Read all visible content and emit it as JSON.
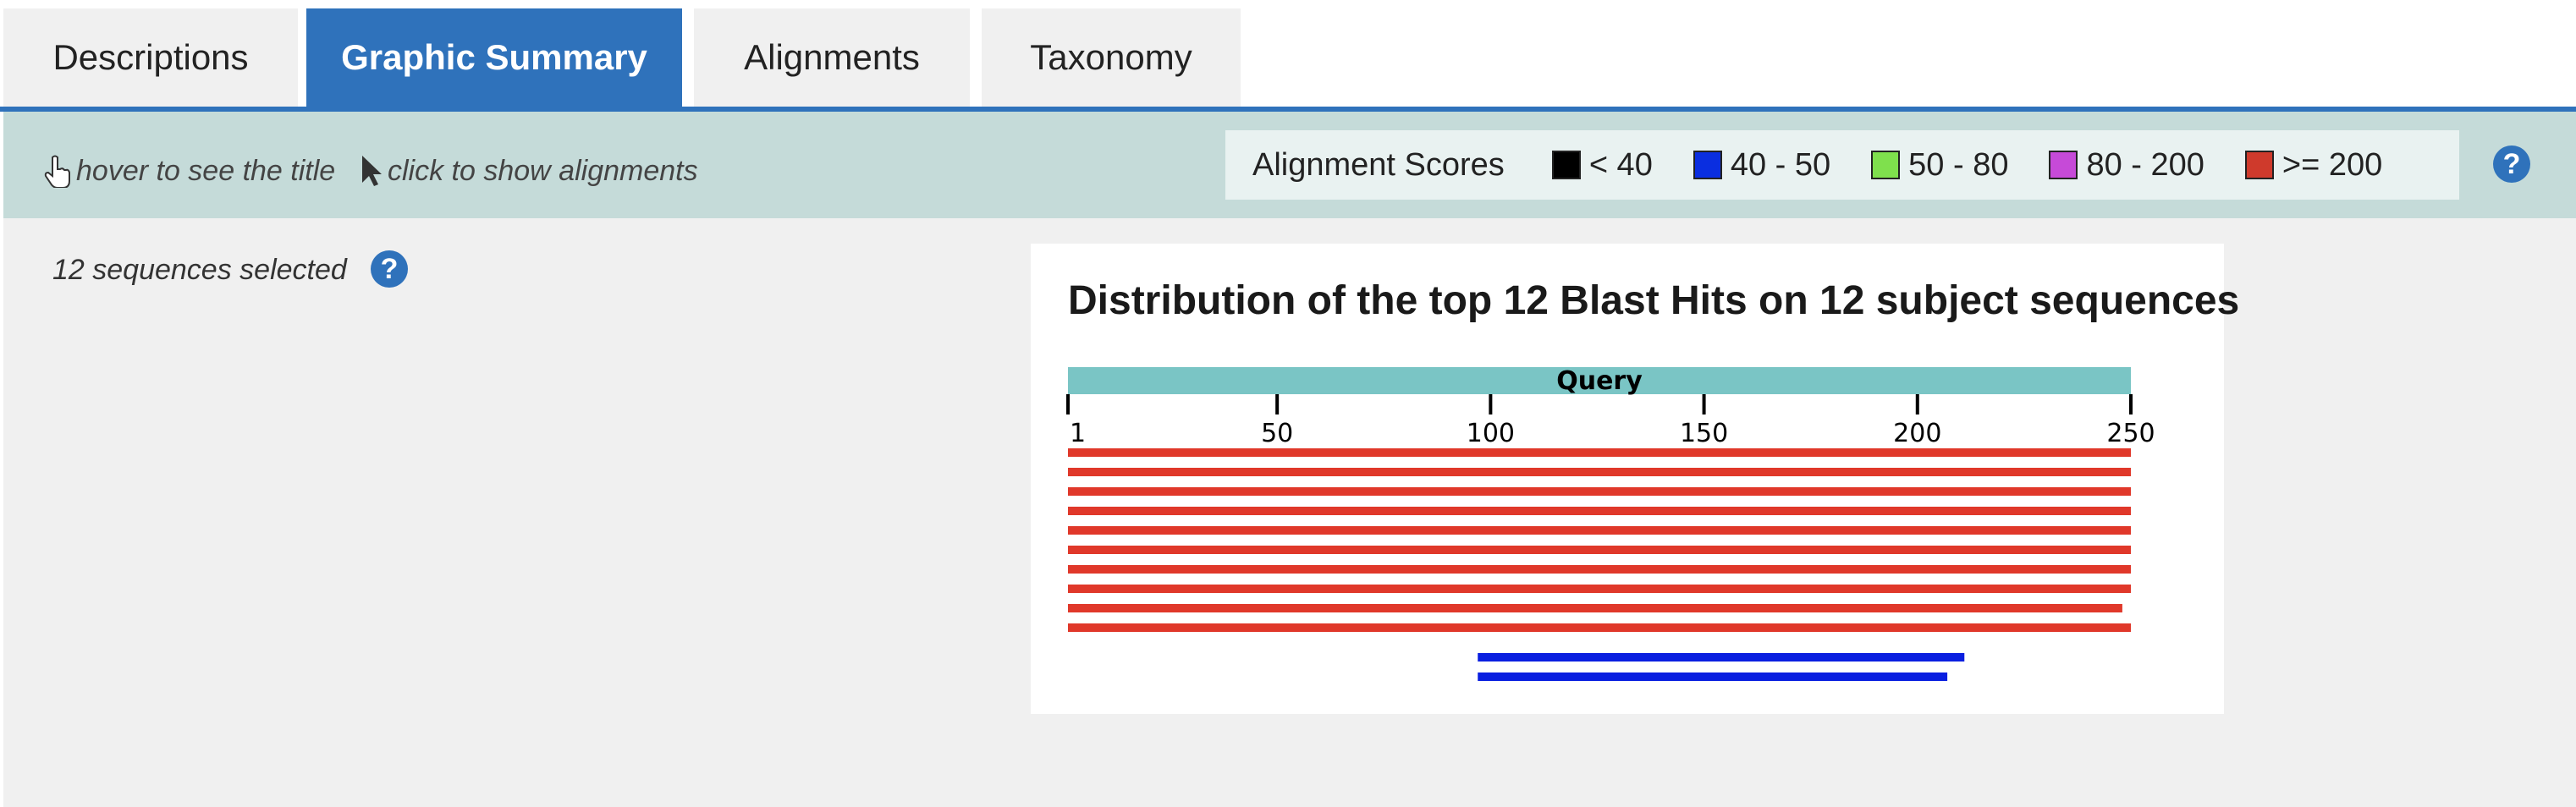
{
  "tabs": [
    {
      "label": "Descriptions",
      "active": false
    },
    {
      "label": "Graphic Summary",
      "active": true
    },
    {
      "label": "Alignments",
      "active": false
    },
    {
      "label": "Taxonomy",
      "active": false
    }
  ],
  "toolbar": {
    "hover_hint": "hover to see the title",
    "click_hint": "click to show alignments",
    "legend_title": "Alignment Scores",
    "legend": [
      {
        "label": "< 40",
        "color": "#000000"
      },
      {
        "label": "40 - 50",
        "color": "#0a2ee0"
      },
      {
        "label": "50 - 80",
        "color": "#7fe04d"
      },
      {
        "label": "80 - 200",
        "color": "#c64ad8"
      },
      {
        "label": ">= 200",
        "color": "#cf3a2c"
      }
    ],
    "help_icon": "?"
  },
  "selection": {
    "text": "12 sequences selected",
    "help_icon": "?"
  },
  "chart_data": {
    "type": "bar",
    "title": "Distribution of the top 12 Blast Hits on 12 subject sequences",
    "query_label": "Query",
    "xlim": [
      1,
      250
    ],
    "ticks": [
      1,
      50,
      100,
      150,
      200,
      250
    ],
    "hits": [
      {
        "start": 1,
        "end": 250,
        "score_bin": ">= 200",
        "color": "#e0382a"
      },
      {
        "start": 1,
        "end": 250,
        "score_bin": ">= 200",
        "color": "#e0382a"
      },
      {
        "start": 1,
        "end": 250,
        "score_bin": ">= 200",
        "color": "#e0382a"
      },
      {
        "start": 1,
        "end": 250,
        "score_bin": ">= 200",
        "color": "#e0382a"
      },
      {
        "start": 1,
        "end": 250,
        "score_bin": ">= 200",
        "color": "#e0382a"
      },
      {
        "start": 1,
        "end": 250,
        "score_bin": ">= 200",
        "color": "#e0382a"
      },
      {
        "start": 1,
        "end": 250,
        "score_bin": ">= 200",
        "color": "#e0382a"
      },
      {
        "start": 1,
        "end": 250,
        "score_bin": ">= 200",
        "color": "#e0382a"
      },
      {
        "start": 1,
        "end": 248,
        "score_bin": ">= 200",
        "color": "#e0382a"
      },
      {
        "start": 1,
        "end": 250,
        "score_bin": ">= 200",
        "color": "#e0382a"
      },
      {
        "start": 97,
        "end": 211,
        "score_bin": "40 - 50",
        "color": "#0a1fe0"
      },
      {
        "start": 97,
        "end": 207,
        "score_bin": "40 - 50",
        "color": "#0a1fe0"
      }
    ]
  }
}
